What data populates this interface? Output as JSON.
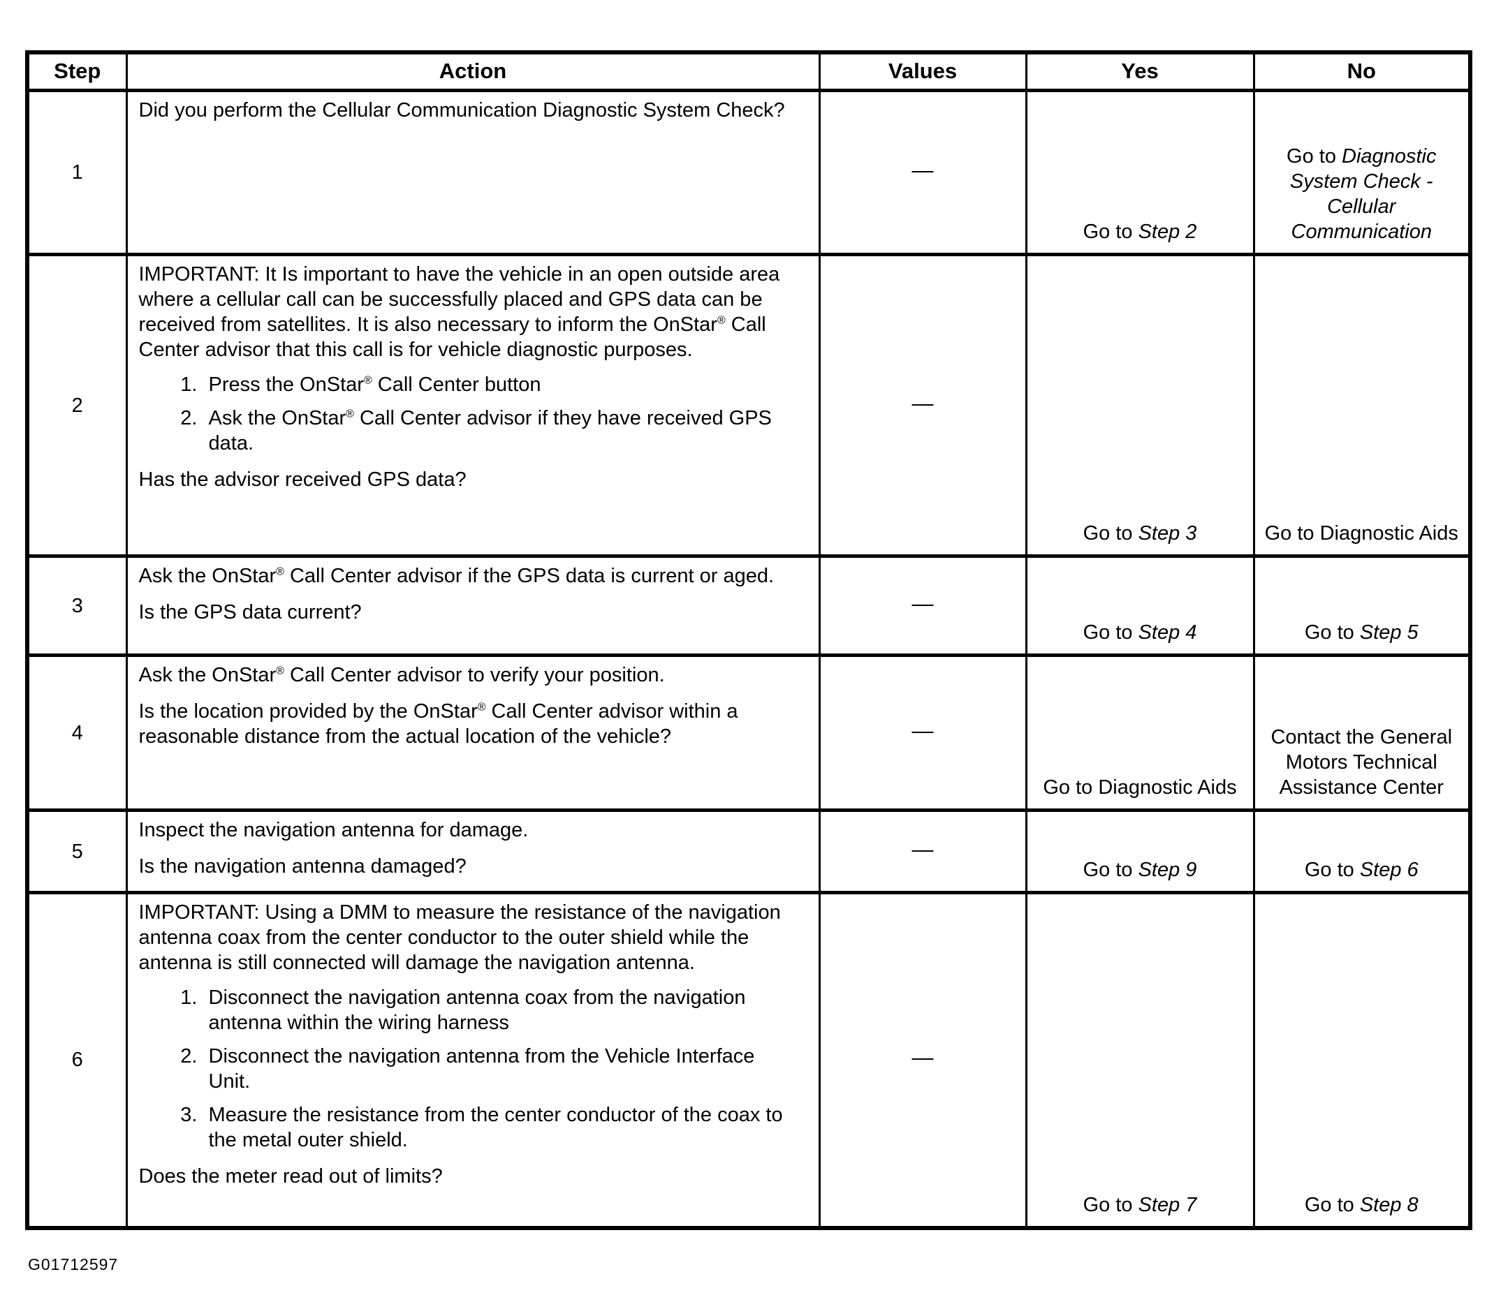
{
  "figure_id": "G01712597",
  "table": {
    "headers": [
      "Step",
      "Action",
      "Values",
      "Yes",
      "No"
    ],
    "rows": [
      {
        "step": "1",
        "action": {
          "p1": "Did you perform the Cellular Communication Diagnostic System Check?"
        },
        "values": "—",
        "yes": {
          "pre": "Go to ",
          "it": "Step 2"
        },
        "no": {
          "pre": "Go to ",
          "it": "Diagnostic System Check - Cellular Communication"
        }
      },
      {
        "step": "2",
        "action": {
          "p1": "IMPORTANT: It Is important to have the vehicle in an open outside area where a cellular call can be successfully placed and GPS data can be received from satellites. It is also necessary to inform the OnStar® Call Center advisor that this call is for vehicle diagnostic purposes.",
          "items": [
            "Press the OnStar® Call Center button",
            "Ask the OnStar® Call Center advisor if they have received GPS data."
          ],
          "q": "Has the advisor received GPS data?"
        },
        "values": "—",
        "yes": {
          "pre": "Go to ",
          "it": "Step 3"
        },
        "no": {
          "pre": "Go to Diagnostic Aids",
          "it": ""
        }
      },
      {
        "step": "3",
        "action": {
          "p1": "Ask the OnStar® Call Center advisor if the GPS data is current or aged.",
          "q": "Is the GPS data current?"
        },
        "values": "—",
        "yes": {
          "pre": "Go to ",
          "it": "Step 4"
        },
        "no": {
          "pre": "Go to ",
          "it": "Step 5"
        }
      },
      {
        "step": "4",
        "action": {
          "p1": "Ask the OnStar® Call Center advisor to verify your position.",
          "p2": "Is the location provided by the OnStar® Call Center advisor within a reasonable distance from the actual location of the vehicle?"
        },
        "values": "—",
        "yes": {
          "pre": "Go to Diagnostic Aids",
          "it": ""
        },
        "no": {
          "pre": "Contact the General Motors Technical Assistance Center",
          "it": ""
        }
      },
      {
        "step": "5",
        "action": {
          "p1": "Inspect the navigation antenna for damage.",
          "q": "Is the navigation antenna damaged?"
        },
        "values": "—",
        "yes": {
          "pre": "Go to ",
          "it": "Step 9"
        },
        "no": {
          "pre": "Go to ",
          "it": "Step 6"
        }
      },
      {
        "step": "6",
        "action": {
          "p1": "IMPORTANT: Using a DMM to measure the resistance of the navigation antenna coax from the center conductor to the outer shield while the antenna is still connected will damage the navigation antenna.",
          "items": [
            "Disconnect the navigation antenna coax from the navigation antenna within the wiring harness",
            "Disconnect the navigation antenna from the Vehicle Interface Unit.",
            "Measure the resistance from the center conductor of the coax to the metal outer shield."
          ],
          "q": "Does the meter read out of limits?"
        },
        "values": "—",
        "yes": {
          "pre": "Go to ",
          "it": "Step 7"
        },
        "no": {
          "pre": "Go to ",
          "it": "Step 8"
        }
      }
    ]
  }
}
